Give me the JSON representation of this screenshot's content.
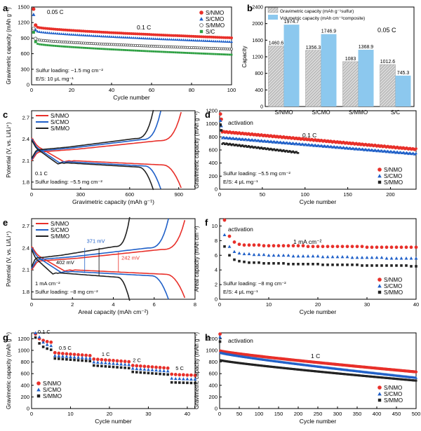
{
  "chart_data": [
    {
      "panel": "a",
      "type": "scatter",
      "xlabel": "Cycle number",
      "ylabel": "Gravimetric capacity (mAh g⁻¹)",
      "xlim": [
        0,
        100
      ],
      "ylim": [
        0,
        1500
      ],
      "xticks": [
        0,
        20,
        40,
        60,
        80,
        100
      ],
      "yticks": [
        0,
        300,
        600,
        900,
        1200,
        1500
      ],
      "annotations": [
        "0.05 C",
        "0.1 C",
        "Sulfur loading: ~1.5 mg cm⁻²",
        "E/S: 10 μL mg⁻¹"
      ],
      "series": [
        {
          "name": "S/NMO",
          "color": "#e8302a",
          "filled": true,
          "initial": [
            1460.6,
            1150
          ],
          "start": 1110,
          "end": 905
        },
        {
          "name": "S/CMO",
          "color": "#2060c8",
          "filled": true,
          "initial": [
            1356.3,
            1060
          ],
          "start": 1030,
          "end": 830
        },
        {
          "name": "S/MMO",
          "color": "#555555",
          "filled": false,
          "initial": [
            1083,
            890
          ],
          "start": 870,
          "end": 690
        },
        {
          "name": "S/C",
          "color": "#2ea043",
          "filled": true,
          "initial": [
            1012.6,
            830
          ],
          "start": 790,
          "end": 580
        }
      ]
    },
    {
      "panel": "b",
      "type": "bar",
      "ylabel": "Capacity",
      "ylim": [
        0,
        2400
      ],
      "yticks": [
        0,
        400,
        800,
        1200,
        1600,
        2000,
        2400
      ],
      "categories": [
        "S/NMO",
        "S/CMO",
        "S/MMO",
        "S/C"
      ],
      "legend": [
        "Gravimetric capacity (mAh g⁻¹sulfur)",
        "Volumetric capacity (mAh cm⁻³composite)"
      ],
      "rate": "0.05 C",
      "series": [
        {
          "name": "Gravimetric capacity",
          "values": [
            1460.6,
            1356.3,
            1083,
            1012.6
          ],
          "labels": [
            "1460.6",
            "1356.3",
            "1083",
            "1012.6"
          ]
        },
        {
          "name": "Volumetric capacity",
          "values": [
            1974.7,
            1746.9,
            1368.9,
            745.3
          ],
          "labels": [
            "1974.7",
            "1746.9",
            "1368.9",
            "745.3"
          ]
        }
      ]
    },
    {
      "panel": "c",
      "type": "line",
      "xlabel": "Gravimetric capacity (mAh g⁻¹)",
      "ylabel": "Potential (V, vs. Li/Li⁺)",
      "xlim": [
        0,
        1000
      ],
      "ylim": [
        1.7,
        2.8
      ],
      "xticks": [
        0,
        300,
        600,
        900
      ],
      "yticks": [
        1.8,
        2.1,
        2.4,
        2.7
      ],
      "annotations": [
        "0.1 C",
        "Sulfur loading: ~5.5 mg cm⁻²"
      ],
      "series": [
        {
          "name": "S/NMO",
          "color": "#e8302a",
          "capacity": 915
        },
        {
          "name": "S/CMO",
          "color": "#2060c8",
          "capacity": 790
        },
        {
          "name": "S/MMO",
          "color": "#222222",
          "capacity": 745
        }
      ]
    },
    {
      "panel": "d",
      "type": "scatter",
      "xlabel": "Cycle number",
      "ylabel": "Gravimetric capacity (mAh g⁻¹)",
      "xlim": [
        0,
        230
      ],
      "ylim": [
        0,
        1200
      ],
      "xticks": [
        0,
        50,
        100,
        150,
        200
      ],
      "yticks": [
        0,
        200,
        400,
        600,
        800,
        1000,
        1200
      ],
      "annotations": [
        "activation",
        "0.1 C",
        "Sulfur loading: ~5.5 mg cm⁻²",
        "E/S: 4 μL mg⁻¹"
      ],
      "series": [
        {
          "name": "S/NMO",
          "color": "#e8302a",
          "marker": "circle",
          "cycles": 230,
          "initial": 1150,
          "start": 880,
          "end": 610
        },
        {
          "name": "S/CMO",
          "color": "#2060c8",
          "marker": "triangle",
          "cycles": 230,
          "initial": 1050,
          "start": 790,
          "end": 540
        },
        {
          "name": "S/MMO",
          "color": "#222222",
          "marker": "square",
          "cycles": 92,
          "initial": 980,
          "start": 700,
          "end": 560
        }
      ]
    },
    {
      "panel": "e",
      "type": "line",
      "xlabel": "Areal capacity (mAh cm⁻²)",
      "ylabel": "Potential (V, vs. Li/Li⁺)",
      "xlim": [
        0,
        8
      ],
      "ylim": [
        1.7,
        2.8
      ],
      "xticks": [
        0,
        2,
        4,
        6,
        8
      ],
      "yticks": [
        1.8,
        2.1,
        2.4,
        2.7
      ],
      "annotations": [
        "371 mV",
        "402 mV",
        "242 mV",
        "1 mA cm⁻²",
        "Sulfur loading: ~8 mg cm⁻²"
      ],
      "series": [
        {
          "name": "S/NMO",
          "color": "#e8302a",
          "capacity": 7.5
        },
        {
          "name": "S/CMO",
          "color": "#2060c8",
          "capacity": 6.7
        },
        {
          "name": "S/MMO",
          "color": "#222222",
          "capacity": 4.8
        }
      ]
    },
    {
      "panel": "f",
      "type": "scatter",
      "xlabel": "Cycle number",
      "ylabel": "Areal capacity (mAh cm⁻²)",
      "xlim": [
        0,
        40
      ],
      "ylim": [
        0,
        11
      ],
      "xticks": [
        0,
        10,
        20,
        30,
        40
      ],
      "yticks": [
        0,
        2,
        4,
        6,
        8,
        10
      ],
      "annotations": [
        "activation",
        "1 mA cm⁻²",
        "Sulfur loading: ~8 mg cm⁻²",
        "E/S: 4 μL mg⁻¹"
      ],
      "series": [
        {
          "name": "S/NMO",
          "color": "#e8302a",
          "marker": "circle",
          "values": [
            10.8,
            8.6,
            7.8,
            7.5,
            7.4,
            7.4,
            7.4,
            7.4,
            7.3,
            7.3,
            7.3,
            7.3,
            7.3,
            7.3,
            7.3,
            7.3,
            7.3,
            7.2,
            7.2,
            7.2,
            7.2,
            7.2,
            7.2,
            7.2,
            7.2,
            7.2,
            7.2,
            7.2,
            7.2,
            7.1,
            7.1,
            7.1,
            7.1,
            7.1,
            7.1,
            7.1,
            7.1,
            7.1,
            7.1,
            7.1
          ]
        },
        {
          "name": "S/CMO",
          "color": "#2060c8",
          "marker": "triangle",
          "values": [
            8.8,
            7.2,
            6.5,
            6.3,
            6.2,
            6.2,
            6.1,
            6.1,
            6.1,
            6.0,
            6.0,
            6.0,
            6.0,
            6.0,
            5.9,
            5.9,
            5.9,
            5.9,
            5.9,
            5.9,
            5.8,
            5.8,
            5.8,
            5.8,
            5.8,
            5.8,
            5.7,
            5.7,
            5.7,
            5.7,
            5.7,
            5.7,
            5.7,
            5.6,
            5.6,
            5.6,
            5.6,
            5.6,
            5.6,
            5.6
          ]
        },
        {
          "name": "S/MMO",
          "color": "#222222",
          "marker": "square",
          "values": [
            7.2,
            6.0,
            5.4,
            5.2,
            5.1,
            5.0,
            5.0,
            5.0,
            4.9,
            4.9,
            4.9,
            4.9,
            4.9,
            4.8,
            4.8,
            4.8,
            4.8,
            4.8,
            4.8,
            4.8,
            4.7,
            4.7,
            4.7,
            4.7,
            4.7,
            4.7,
            4.7,
            4.7,
            4.6,
            4.6,
            4.6,
            4.6,
            4.6,
            4.6,
            4.6,
            4.6,
            4.6,
            4.6,
            4.5,
            4.5
          ]
        }
      ]
    },
    {
      "panel": "g",
      "type": "scatter",
      "xlabel": "Cycle number",
      "ylabel": "Gravimetric capacity (mAh g⁻¹)",
      "xlim": [
        0,
        42
      ],
      "ylim": [
        0,
        1300
      ],
      "xticks": [
        0,
        10,
        20,
        30,
        40
      ],
      "yticks": [
        0,
        200,
        400,
        600,
        800,
        1000,
        1200
      ],
      "rate_labels": [
        "0.1 C",
        "0.5 C",
        "1 C",
        "2 C",
        "5 C"
      ],
      "series": [
        {
          "name": "S/NMO",
          "color": "#e8302a",
          "marker": "circle",
          "values": [
            1280,
            1200,
            1170,
            1150,
            1140,
            960,
            950,
            945,
            940,
            935,
            930,
            925,
            920,
            915,
            910,
            850,
            845,
            840,
            835,
            830,
            825,
            820,
            815,
            810,
            805,
            740,
            735,
            730,
            725,
            720,
            715,
            710,
            705,
            700,
            695,
            590,
            585,
            580,
            580,
            575,
            575,
            570
          ]
        },
        {
          "name": "S/CMO",
          "color": "#2060c8",
          "marker": "triangle",
          "values": [
            1300,
            1230,
            1140,
            1100,
            1080,
            910,
            905,
            900,
            895,
            890,
            885,
            880,
            875,
            870,
            865,
            800,
            795,
            790,
            785,
            780,
            775,
            770,
            765,
            760,
            755,
            690,
            685,
            680,
            675,
            670,
            665,
            660,
            655,
            650,
            645,
            520,
            515,
            515,
            510,
            510,
            505,
            505
          ]
        },
        {
          "name": "S/MMO",
          "color": "#222222",
          "marker": "square",
          "values": [
            1220,
            1120,
            1060,
            1030,
            1010,
            860,
            855,
            850,
            845,
            840,
            835,
            830,
            825,
            820,
            815,
            740,
            735,
            730,
            725,
            720,
            715,
            710,
            705,
            700,
            695,
            630,
            625,
            620,
            615,
            610,
            605,
            600,
            595,
            590,
            585,
            450,
            448,
            446,
            444,
            442,
            440,
            438
          ]
        }
      ]
    },
    {
      "panel": "h",
      "type": "scatter",
      "xlabel": "Cycle number",
      "ylabel": "Gravimetric capacity (mAh g⁻¹)",
      "xlim": [
        0,
        500
      ],
      "ylim": [
        0,
        1300
      ],
      "xticks": [
        0,
        50,
        100,
        150,
        200,
        250,
        300,
        350,
        400,
        450,
        500
      ],
      "yticks": [
        0,
        200,
        400,
        600,
        800,
        1000,
        1200
      ],
      "annotations": [
        "activation",
        "1 C"
      ],
      "series": [
        {
          "name": "S/NMO",
          "color": "#e8302a",
          "marker": "circle",
          "initial": 1280,
          "start": 990,
          "end": 630
        },
        {
          "name": "S/CMO",
          "color": "#2060c8",
          "marker": "triangle",
          "initial": 1230,
          "start": 960,
          "end": 530
        },
        {
          "name": "S/MMO",
          "color": "#222222",
          "marker": "square",
          "initial": 1150,
          "start": 830,
          "end": 480
        }
      ]
    }
  ]
}
